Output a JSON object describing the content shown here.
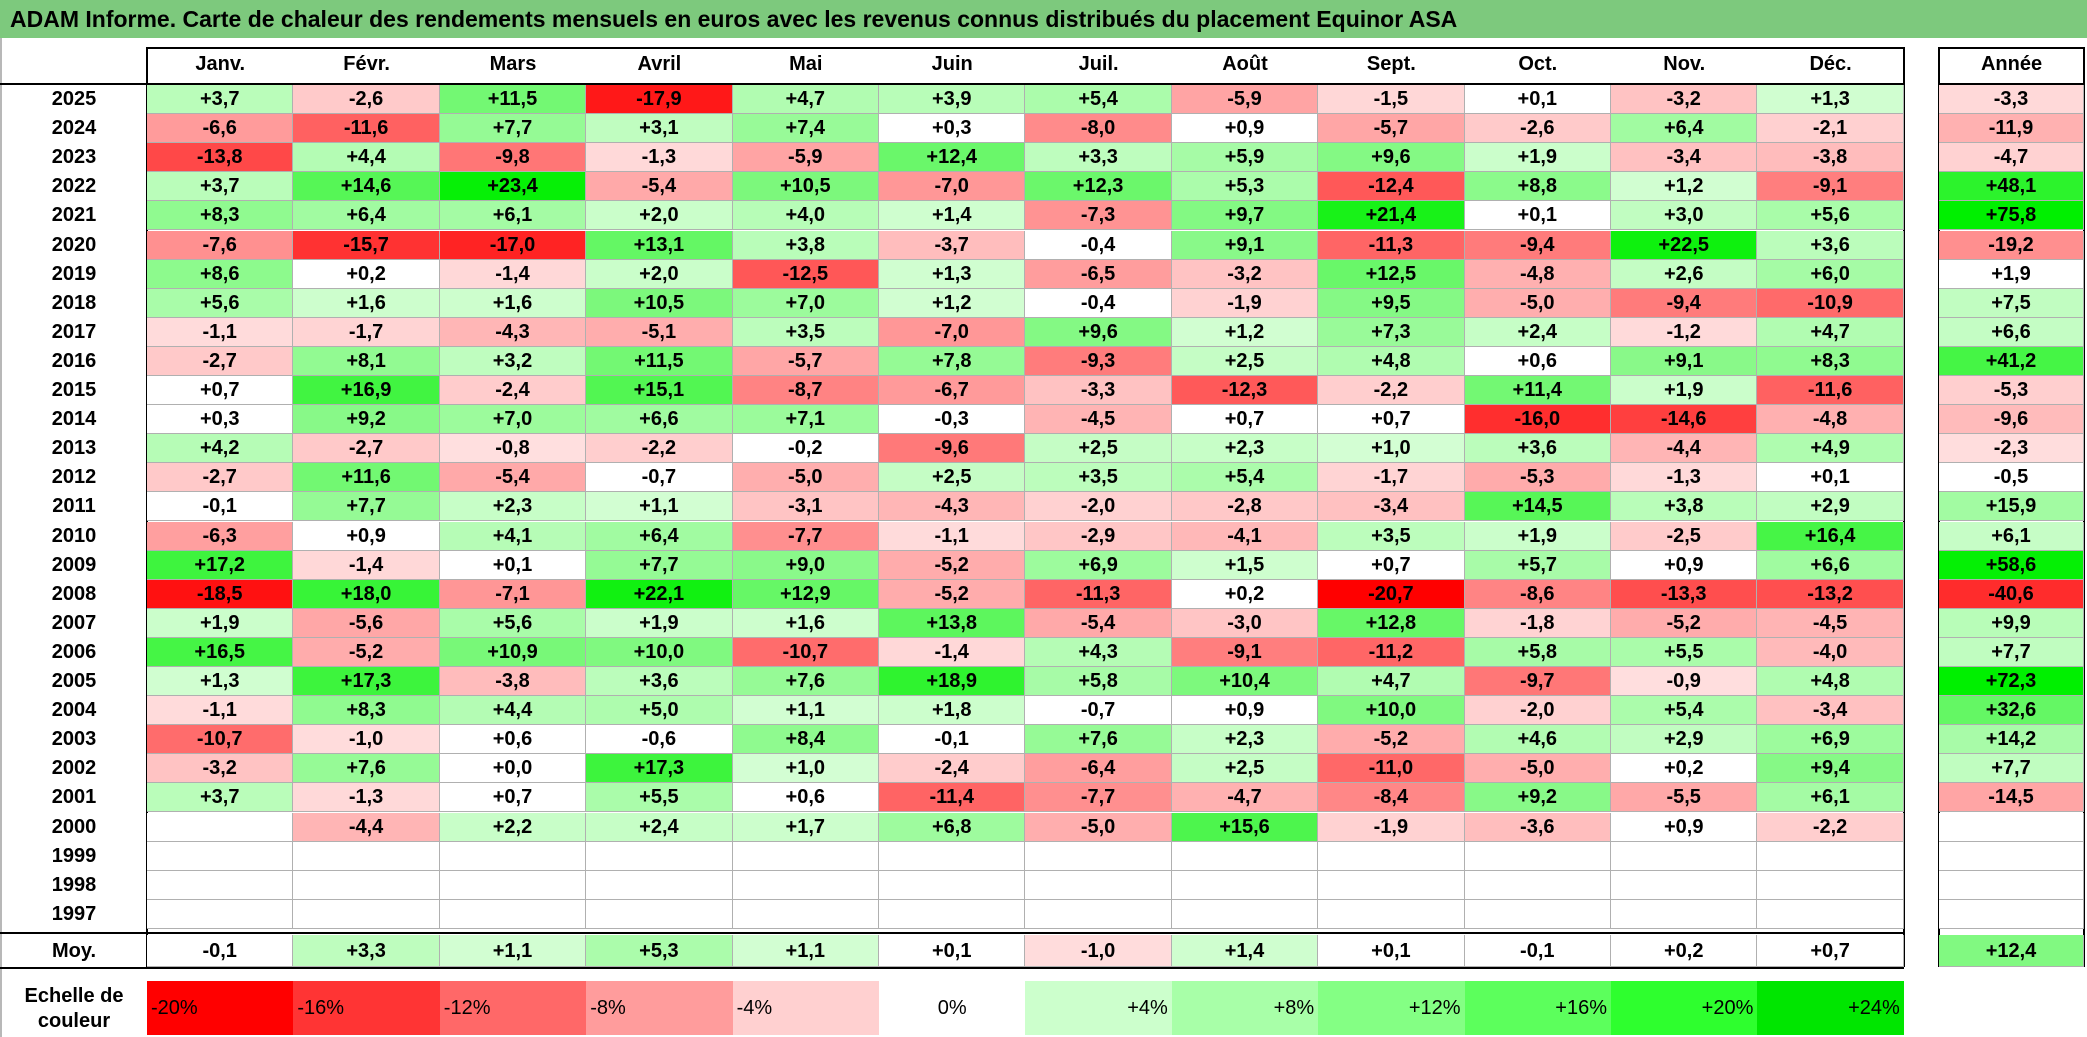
{
  "title": "ADAM Informe. Carte de chaleur des rendements mensuels en euros avec les revenus connus distribués du placement Equinor ASA",
  "chart_data": {
    "type": "heatmap",
    "columns": [
      "Janv.",
      "Févr.",
      "Mars",
      "Avril",
      "Mai",
      "Juin",
      "Juil.",
      "Août",
      "Sept.",
      "Oct.",
      "Nov.",
      "Déc."
    ],
    "year_column_label": "Année",
    "rows": [
      {
        "year": "2025",
        "values": [
          "+3,7",
          "-2,6",
          "+11,5",
          "-17,9",
          "+4,7",
          "+3,9",
          "+5,4",
          "-5,9",
          "-1,5",
          "+0,1",
          "-3,2",
          "+1,3"
        ],
        "annual": "-3,3"
      },
      {
        "year": "2024",
        "values": [
          "-6,6",
          "-11,6",
          "+7,7",
          "+3,1",
          "+7,4",
          "+0,3",
          "-8,0",
          "+0,9",
          "-5,7",
          "-2,6",
          "+6,4",
          "-2,1"
        ],
        "annual": "-11,9"
      },
      {
        "year": "2023",
        "values": [
          "-13,8",
          "+4,4",
          "-9,8",
          "-1,3",
          "-5,9",
          "+12,4",
          "+3,3",
          "+5,9",
          "+9,6",
          "+1,9",
          "-3,4",
          "-3,8"
        ],
        "annual": "-4,7"
      },
      {
        "year": "2022",
        "values": [
          "+3,7",
          "+14,6",
          "+23,4",
          "-5,4",
          "+10,5",
          "-7,0",
          "+12,3",
          "+5,3",
          "-12,4",
          "+8,8",
          "+1,2",
          "-9,1"
        ],
        "annual": "+48,1"
      },
      {
        "year": "2021",
        "values": [
          "+8,3",
          "+6,4",
          "+6,1",
          "+2,0",
          "+4,0",
          "+1,4",
          "-7,3",
          "+9,7",
          "+21,4",
          "+0,1",
          "+3,0",
          "+5,6"
        ],
        "annual": "+75,8"
      },
      {
        "year": "2020",
        "values": [
          "-7,6",
          "-15,7",
          "-17,0",
          "+13,1",
          "+3,8",
          "-3,7",
          "-0,4",
          "+9,1",
          "-11,3",
          "-9,4",
          "+22,5",
          "+3,6"
        ],
        "annual": "-19,2"
      },
      {
        "year": "2019",
        "values": [
          "+8,6",
          "+0,2",
          "-1,4",
          "+2,0",
          "-12,5",
          "+1,3",
          "-6,5",
          "-3,2",
          "+12,5",
          "-4,8",
          "+2,6",
          "+6,0"
        ],
        "annual": "+1,9"
      },
      {
        "year": "2018",
        "values": [
          "+5,6",
          "+1,6",
          "+1,6",
          "+10,5",
          "+7,0",
          "+1,2",
          "-0,4",
          "-1,9",
          "+9,5",
          "-5,0",
          "-9,4",
          "-10,9"
        ],
        "annual": "+7,5"
      },
      {
        "year": "2017",
        "values": [
          "-1,1",
          "-1,7",
          "-4,3",
          "-5,1",
          "+3,5",
          "-7,0",
          "+9,6",
          "+1,2",
          "+7,3",
          "+2,4",
          "-1,2",
          "+4,7"
        ],
        "annual": "+6,6"
      },
      {
        "year": "2016",
        "values": [
          "-2,7",
          "+8,1",
          "+3,2",
          "+11,5",
          "-5,7",
          "+7,8",
          "-9,3",
          "+2,5",
          "+4,8",
          "+0,6",
          "+9,1",
          "+8,3"
        ],
        "annual": "+41,2"
      },
      {
        "year": "2015",
        "values": [
          "+0,7",
          "+16,9",
          "-2,4",
          "+15,1",
          "-8,7",
          "-6,7",
          "-3,3",
          "-12,3",
          "-2,2",
          "+11,4",
          "+1,9",
          "-11,6"
        ],
        "annual": "-5,3"
      },
      {
        "year": "2014",
        "values": [
          "+0,3",
          "+9,2",
          "+7,0",
          "+6,6",
          "+7,1",
          "-0,3",
          "-4,5",
          "+0,7",
          "+0,7",
          "-16,0",
          "-14,6",
          "-4,8"
        ],
        "annual": "-9,6"
      },
      {
        "year": "2013",
        "values": [
          "+4,2",
          "-2,7",
          "-0,8",
          "-2,2",
          "-0,2",
          "-9,6",
          "+2,5",
          "+2,3",
          "+1,0",
          "+3,6",
          "-4,4",
          "+4,9"
        ],
        "annual": "-2,3"
      },
      {
        "year": "2012",
        "values": [
          "-2,7",
          "+11,6",
          "-5,4",
          "-0,7",
          "-5,0",
          "+2,5",
          "+3,5",
          "+5,4",
          "-1,7",
          "-5,3",
          "-1,3",
          "+0,1"
        ],
        "annual": "-0,5"
      },
      {
        "year": "2011",
        "values": [
          "-0,1",
          "+7,7",
          "+2,3",
          "+1,1",
          "-3,1",
          "-4,3",
          "-2,0",
          "-2,8",
          "-3,4",
          "+14,5",
          "+3,8",
          "+2,9"
        ],
        "annual": "+15,9"
      },
      {
        "year": "2010",
        "values": [
          "-6,3",
          "+0,9",
          "+4,1",
          "+6,4",
          "-7,7",
          "-1,1",
          "-2,9",
          "-4,1",
          "+3,5",
          "+1,9",
          "-2,5",
          "+16,4"
        ],
        "annual": "+6,1"
      },
      {
        "year": "2009",
        "values": [
          "+17,2",
          "-1,4",
          "+0,1",
          "+7,7",
          "+9,0",
          "-5,2",
          "+6,9",
          "+1,5",
          "+0,7",
          "+5,7",
          "+0,9",
          "+6,6"
        ],
        "annual": "+58,6"
      },
      {
        "year": "2008",
        "values": [
          "-18,5",
          "+18,0",
          "-7,1",
          "+22,1",
          "+12,9",
          "-5,2",
          "-11,3",
          "+0,2",
          "-20,7",
          "-8,6",
          "-13,3",
          "-13,2"
        ],
        "annual": "-40,6"
      },
      {
        "year": "2007",
        "values": [
          "+1,9",
          "-5,6",
          "+5,6",
          "+1,9",
          "+1,6",
          "+13,8",
          "-5,4",
          "-3,0",
          "+12,8",
          "-1,8",
          "-5,2",
          "-4,5"
        ],
        "annual": "+9,9"
      },
      {
        "year": "2006",
        "values": [
          "+16,5",
          "-5,2",
          "+10,9",
          "+10,0",
          "-10,7",
          "-1,4",
          "+4,3",
          "-9,1",
          "-11,2",
          "+5,8",
          "+5,5",
          "-4,0"
        ],
        "annual": "+7,7"
      },
      {
        "year": "2005",
        "values": [
          "+1,3",
          "+17,3",
          "-3,8",
          "+3,6",
          "+7,6",
          "+18,9",
          "+5,8",
          "+10,4",
          "+4,7",
          "-9,7",
          "-0,9",
          "+4,8"
        ],
        "annual": "+72,3"
      },
      {
        "year": "2004",
        "values": [
          "-1,1",
          "+8,3",
          "+4,4",
          "+5,0",
          "+1,1",
          "+1,8",
          "-0,7",
          "+0,9",
          "+10,0",
          "-2,0",
          "+5,4",
          "-3,4"
        ],
        "annual": "+32,6"
      },
      {
        "year": "2003",
        "values": [
          "-10,7",
          "-1,0",
          "+0,6",
          "-0,6",
          "+8,4",
          "-0,1",
          "+7,6",
          "+2,3",
          "-5,2",
          "+4,6",
          "+2,9",
          "+6,9"
        ],
        "annual": "+14,2"
      },
      {
        "year": "2002",
        "values": [
          "-3,2",
          "+7,6",
          "+0,0",
          "+17,3",
          "+1,0",
          "-2,4",
          "-6,4",
          "+2,5",
          "-11,0",
          "-5,0",
          "+0,2",
          "+9,4"
        ],
        "annual": "+7,7"
      },
      {
        "year": "2001",
        "values": [
          "+3,7",
          "-1,3",
          "+0,7",
          "+5,5",
          "+0,6",
          "-11,4",
          "-7,7",
          "-4,7",
          "-8,4",
          "+9,2",
          "-5,5",
          "+6,1"
        ],
        "annual": "-14,5"
      },
      {
        "year": "2000",
        "values": [
          "",
          "-4,4",
          "+2,2",
          "+2,4",
          "+1,7",
          "+6,8",
          "-5,0",
          "+15,6",
          "-1,9",
          "-3,6",
          "+0,9",
          "-2,2"
        ],
        "annual": ""
      },
      {
        "year": "1999",
        "values": [
          "",
          "",
          "",
          "",
          "",
          "",
          "",
          "",
          "",
          "",
          "",
          ""
        ],
        "annual": ""
      },
      {
        "year": "1998",
        "values": [
          "",
          "",
          "",
          "",
          "",
          "",
          "",
          "",
          "",
          "",
          "",
          ""
        ],
        "annual": ""
      },
      {
        "year": "1997",
        "values": [
          "",
          "",
          "",
          "",
          "",
          "",
          "",
          "",
          "",
          "",
          "",
          ""
        ],
        "annual": ""
      }
    ],
    "average": {
      "label": "Moy.",
      "values": [
        "-0,1",
        "+3,3",
        "+1,1",
        "+5,3",
        "+1,1",
        "+0,1",
        "-1,0",
        "+1,4",
        "+0,1",
        "-0,1",
        "+0,2",
        "+0,7"
      ],
      "annual": "+12,4"
    },
    "color_scale": {
      "label": "Echelle de couleur",
      "steps": [
        "-20%",
        "-16%",
        "-12%",
        "-8%",
        "-4%",
        "0%",
        "+4%",
        "+8%",
        "+12%",
        "+16%",
        "+20%",
        "+24%"
      ],
      "colors": [
        "#ff0000",
        "#ff3434",
        "#ff6868",
        "#ff9c9c",
        "#ffd0d0",
        "#ffffff",
        "#ccffcc",
        "#a8ffa8",
        "#84ff84",
        "#5cff5c",
        "#2eff2e",
        "#00e600"
      ]
    }
  }
}
